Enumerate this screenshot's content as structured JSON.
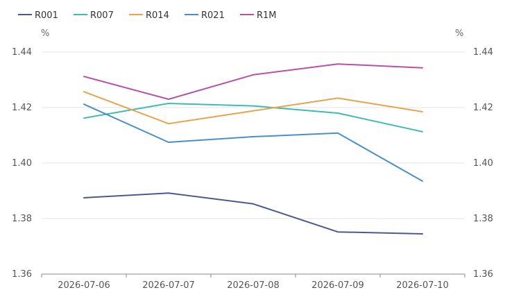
{
  "chart_data": {
    "type": "line",
    "categories": [
      "2026-07-06",
      "2026-07-07",
      "2026-07-08",
      "2026-07-09",
      "2026-07-10"
    ],
    "series": [
      {
        "name": "R001",
        "color": "#4a5a8c",
        "values": [
          1.3875,
          1.3892,
          1.3853,
          1.3752,
          1.3745
        ]
      },
      {
        "name": "R007",
        "color": "#3dbbb4",
        "values": [
          1.4162,
          1.4215,
          1.4206,
          1.418,
          1.4113
        ]
      },
      {
        "name": "R014",
        "color": "#e8a44c",
        "values": [
          1.4257,
          1.4142,
          1.4188,
          1.4234,
          1.4185
        ]
      },
      {
        "name": "R021",
        "color": "#4a8fc6",
        "values": [
          1.4212,
          1.4075,
          1.4095,
          1.4108,
          1.3935
        ]
      },
      {
        "name": "R1M",
        "color": "#b84fa8",
        "values": [
          1.4312,
          1.423,
          1.4318,
          1.4357,
          1.4343
        ]
      }
    ],
    "ylim": [
      1.36,
      1.44
    ],
    "yticks": [
      "1.36",
      "1.38",
      "1.40",
      "1.42",
      "1.44"
    ],
    "ylabel_left": "%",
    "ylabel_right": "%",
    "grid": true,
    "legend_position": "top-left"
  }
}
